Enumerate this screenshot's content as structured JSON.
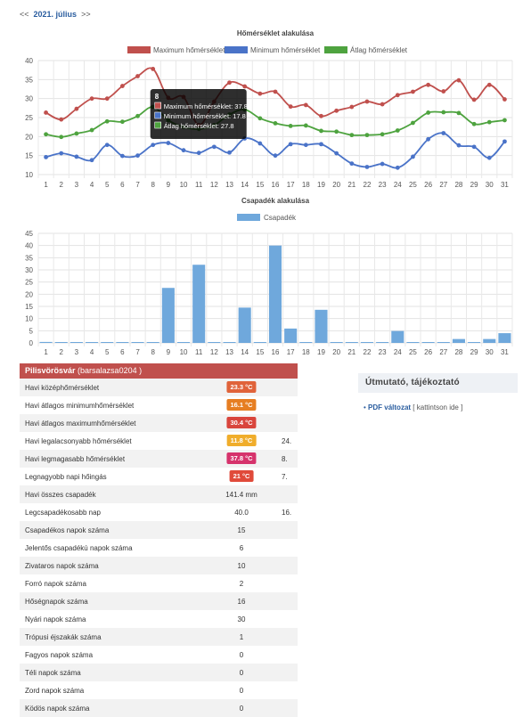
{
  "nav": {
    "prev": "<<",
    "month": "2021. július",
    "next": ">>"
  },
  "colors": {
    "max": "#c0504d",
    "min": "#4a73c8",
    "avg": "#4ea33f",
    "rain": "#6fa8dc",
    "header": "#c0504d"
  },
  "chart_data": [
    {
      "type": "line",
      "title": "Hőmérséklet alakulása",
      "xlabel": "",
      "ylabel": "",
      "ylim": [
        10,
        40
      ],
      "yticks": [
        10,
        15,
        20,
        25,
        30,
        35,
        40
      ],
      "x": [
        1,
        2,
        3,
        4,
        5,
        6,
        7,
        8,
        9,
        10,
        11,
        12,
        13,
        14,
        15,
        16,
        17,
        18,
        19,
        20,
        21,
        22,
        23,
        24,
        25,
        26,
        27,
        28,
        29,
        30,
        31
      ],
      "grid": true,
      "legend": "top",
      "series": [
        {
          "name": "Maximum hőmérséklet",
          "color": "#c0504d",
          "values": [
            26.3,
            24.5,
            27.3,
            30.0,
            30.0,
            33.3,
            35.9,
            37.8,
            30.2,
            30.4,
            23.0,
            29.2,
            34.2,
            33.2,
            31.3,
            31.8,
            27.9,
            28.3,
            25.4,
            26.8,
            27.8,
            29.2,
            28.5,
            30.9,
            31.8,
            33.6,
            31.9,
            34.8,
            29.7,
            33.6,
            29.8
          ]
        },
        {
          "name": "Minimum hőmérséklet",
          "color": "#4a73c8",
          "values": [
            14.6,
            15.6,
            14.7,
            13.8,
            17.8,
            14.9,
            15.0,
            17.8,
            18.3,
            16.4,
            15.7,
            17.3,
            15.8,
            19.5,
            18.2,
            15.0,
            18.0,
            17.8,
            18.0,
            15.6,
            12.9,
            12.0,
            12.8,
            11.8,
            14.7,
            19.3,
            20.9,
            17.7,
            17.3,
            14.4,
            18.7
          ]
        },
        {
          "name": "Átlag hőmérséklet",
          "color": "#4ea33f",
          "values": [
            20.6,
            19.9,
            20.8,
            21.7,
            24.0,
            23.9,
            25.4,
            27.8,
            24.3,
            22.5,
            22.0,
            23.0,
            25.8,
            27.1,
            24.8,
            23.5,
            22.8,
            22.9,
            21.5,
            21.3,
            20.4,
            20.4,
            20.6,
            21.6,
            23.6,
            26.3,
            26.4,
            26.2,
            23.3,
            23.8,
            24.3
          ]
        }
      ],
      "tooltip": {
        "index": 8,
        "title": "8",
        "lines": [
          "Maximum hőmérséklet: 37.8",
          "Minimum hőmérséklet: 17.8",
          "Átlag hőmérséklet: 27.8"
        ]
      }
    },
    {
      "type": "bar",
      "title": "Csapadék alakulása",
      "xlabel": "",
      "ylabel": "",
      "ylim": [
        0,
        45
      ],
      "yticks": [
        0,
        5,
        10,
        15,
        20,
        25,
        30,
        35,
        40,
        45
      ],
      "categories": [
        1,
        2,
        3,
        4,
        5,
        6,
        7,
        8,
        9,
        10,
        11,
        12,
        13,
        14,
        15,
        16,
        17,
        18,
        19,
        20,
        21,
        22,
        23,
        24,
        25,
        26,
        27,
        28,
        29,
        30,
        31
      ],
      "grid": true,
      "legend": "top",
      "series": [
        {
          "name": "Csapadék",
          "color": "#6fa8dc",
          "values": [
            0.4,
            0.1,
            0.1,
            0.1,
            0.1,
            0.1,
            0.1,
            0.1,
            22.6,
            0.1,
            32.1,
            0.1,
            0.1,
            14.5,
            0.1,
            40.0,
            5.9,
            0.1,
            13.6,
            0.1,
            0.1,
            0.1,
            0.1,
            4.9,
            0.1,
            0.1,
            0.1,
            1.6,
            0.1,
            1.6,
            4.0
          ]
        }
      ]
    }
  ],
  "stats": {
    "header_title": "Pilisvörösvár",
    "header_station": "(barsalazsa0204 )",
    "rows": [
      {
        "label": "Havi középhőmérséklet",
        "value": "23.3 °C",
        "badge": "#e0633a",
        "day": ""
      },
      {
        "label": "Havi átlagos minimumhőmérséklet",
        "value": "16.1 °C",
        "badge": "#e67e22",
        "day": ""
      },
      {
        "label": "Havi átlagos maximumhőmérséklet",
        "value": "30.4 °C",
        "badge": "#d9453c",
        "day": ""
      },
      {
        "label": "Havi legalacsonyabb hőmérséklet",
        "value": "11.8 °C",
        "badge": "#f0ad2b",
        "day": "24."
      },
      {
        "label": "Havi legmagasabb hőmérséklet",
        "value": "37.8 °C",
        "badge": "#d6336c",
        "day": "8."
      },
      {
        "label": "Legnagyobb napi hőingás",
        "value": "21 °C",
        "badge": "#e04a3a",
        "day": "7."
      },
      {
        "label": "Havi összes csapadék",
        "value": "141.4 mm",
        "badge": "",
        "day": ""
      },
      {
        "label": "Legcsapadékosabb nap",
        "value": "40.0",
        "badge": "",
        "day": "16."
      },
      {
        "label": "Csapadékos napok száma",
        "value": "15",
        "badge": "",
        "day": ""
      },
      {
        "label": "Jelentős csapadékú napok száma",
        "value": "6",
        "badge": "",
        "day": ""
      },
      {
        "label": "Zivataros napok száma",
        "value": "10",
        "badge": "",
        "day": ""
      },
      {
        "label": "Forró napok száma",
        "value": "2",
        "badge": "",
        "day": ""
      },
      {
        "label": "Hőségnapok száma",
        "value": "16",
        "badge": "",
        "day": ""
      },
      {
        "label": "Nyári napok száma",
        "value": "30",
        "badge": "",
        "day": ""
      },
      {
        "label": "Trópusi éjszakák száma",
        "value": "1",
        "badge": "",
        "day": ""
      },
      {
        "label": "Fagyos napok száma",
        "value": "0",
        "badge": "",
        "day": ""
      },
      {
        "label": "Téli napok száma",
        "value": "0",
        "badge": "",
        "day": ""
      },
      {
        "label": "Zord napok száma",
        "value": "0",
        "badge": "",
        "day": ""
      },
      {
        "label": "Ködös napok száma",
        "value": "0",
        "badge": "",
        "day": ""
      }
    ]
  },
  "side": {
    "title": "Útmutató, tájékoztató",
    "bullet": "•",
    "link": "PDF változat",
    "hint": "[ kattintson ide ]"
  }
}
